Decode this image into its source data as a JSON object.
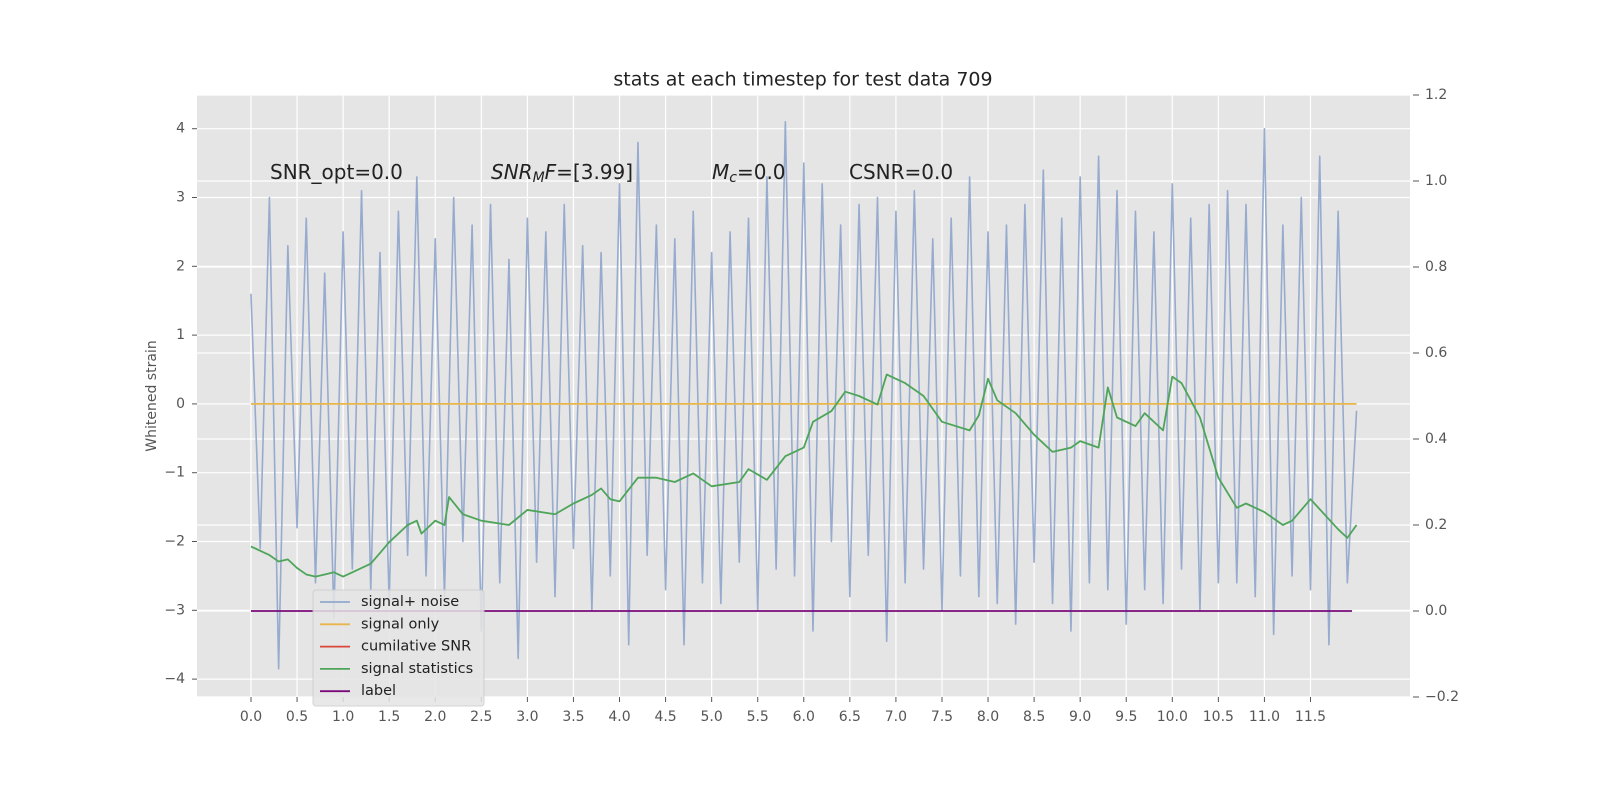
{
  "chart_data": {
    "type": "line",
    "title": "stats at each timestep for test data 709",
    "y_label": "Whitened strain",
    "annotations": [
      [
        "SNR_opt=0.0"
      ],
      [
        "SNR",
        "M",
        "F",
        "=[3.99]"
      ],
      [
        "M",
        "c",
        "=0.0"
      ],
      [
        "CSNR=0.0"
      ]
    ],
    "xlim": [
      -0.586,
      12.58
    ],
    "ylim": [
      -4.26,
      4.49
    ],
    "y2lim": [
      -0.2,
      1.2
    ],
    "xticks": [
      {
        "value": 0,
        "label": "0.0"
      },
      {
        "value": 0.5,
        "label": "0.5"
      },
      {
        "value": 1,
        "label": "1.0"
      },
      {
        "value": 1.5,
        "label": "1.5"
      },
      {
        "value": 2,
        "label": "2.0"
      },
      {
        "value": 2.5,
        "label": "2.5"
      },
      {
        "value": 3,
        "label": "3.0"
      },
      {
        "value": 3.5,
        "label": "3.5"
      },
      {
        "value": 4,
        "label": "4.0"
      },
      {
        "value": 4.5,
        "label": "4.5"
      },
      {
        "value": 5,
        "label": "5.0"
      },
      {
        "value": 5.5,
        "label": "5.5"
      },
      {
        "value": 6,
        "label": "6.0"
      },
      {
        "value": 6.5,
        "label": "6.5"
      },
      {
        "value": 7,
        "label": "7.0"
      },
      {
        "value": 7.5,
        "label": "7.5"
      },
      {
        "value": 8,
        "label": "8.0"
      },
      {
        "value": 8.5,
        "label": "8.5"
      },
      {
        "value": 9,
        "label": "9.0"
      },
      {
        "value": 9.5,
        "label": "9.5"
      },
      {
        "value": 10,
        "label": "10.0"
      },
      {
        "value": 10.5,
        "label": "10.5"
      },
      {
        "value": 11,
        "label": "11.0"
      },
      {
        "value": 11.5,
        "label": "11.5"
      }
    ],
    "yticks": [
      {
        "value": -4,
        "label": "−4"
      },
      {
        "value": -3,
        "label": "−3"
      },
      {
        "value": -2,
        "label": "−2"
      },
      {
        "value": -1,
        "label": "−1"
      },
      0,
      1,
      2,
      3,
      4
    ],
    "y2ticks": [
      {
        "value": -0.2,
        "label": "−0.2"
      },
      {
        "value": 0,
        "label": "0.0"
      },
      0.2,
      0.4,
      0.6,
      0.8,
      {
        "value": 1,
        "label": "1.0"
      },
      1.2
    ],
    "grid": true,
    "legend": "lower left",
    "series": [
      {
        "name": "signal+ noise",
        "color": "#92a8cc",
        "axis": "y",
        "x": [
          0,
          0.1,
          0.2,
          0.3,
          0.4,
          0.5,
          0.6,
          0.7,
          0.8,
          0.9,
          1,
          1.1,
          1.2,
          1.3,
          1.4,
          1.5,
          1.6,
          1.7,
          1.8,
          1.9,
          2,
          2.1,
          2.2,
          2.3,
          2.4,
          2.5,
          2.6,
          2.7,
          2.8,
          2.9,
          3,
          3.1,
          3.2,
          3.3,
          3.4,
          3.5,
          3.6,
          3.7,
          3.8,
          3.9,
          4,
          4.1,
          4.2,
          4.3,
          4.4,
          4.5,
          4.6,
          4.7,
          4.8,
          4.9,
          5,
          5.1,
          5.2,
          5.3,
          5.4,
          5.5,
          5.6,
          5.7,
          5.8,
          5.9,
          6,
          6.1,
          6.2,
          6.3,
          6.4,
          6.5,
          6.6,
          6.7,
          6.8,
          6.9,
          7,
          7.1,
          7.2,
          7.3,
          7.4,
          7.5,
          7.6,
          7.7,
          7.8,
          7.9,
          8,
          8.1,
          8.2,
          8.3,
          8.4,
          8.5,
          8.6,
          8.7,
          8.8,
          8.9,
          9,
          9.1,
          9.2,
          9.3,
          9.4,
          9.5,
          9.6,
          9.7,
          9.8,
          9.9,
          10,
          10.1,
          10.2,
          10.3,
          10.4,
          10.5,
          10.6,
          10.7,
          10.8,
          10.9,
          11,
          11.1,
          11.2,
          11.3,
          11.4,
          11.5,
          11.6,
          11.7,
          11.8,
          11.9,
          12
        ],
        "values": [
          1.6,
          -2.1,
          3.0,
          -3.85,
          2.3,
          -1.8,
          2.7,
          -2.6,
          1.9,
          -3.1,
          2.5,
          -2.4,
          3.1,
          -2.7,
          2.2,
          -2.9,
          2.8,
          -2.2,
          3.3,
          -2.5,
          2.4,
          -2.8,
          3.0,
          -2.0,
          2.6,
          -3.3,
          2.9,
          -2.6,
          2.1,
          -3.7,
          2.7,
          -2.3,
          2.5,
          -2.8,
          2.9,
          -2.1,
          2.3,
          -3.0,
          2.2,
          -2.5,
          3.2,
          -3.5,
          3.8,
          -2.2,
          2.6,
          -2.7,
          2.4,
          -3.5,
          2.8,
          -2.6,
          2.2,
          -2.9,
          2.5,
          -2.3,
          2.7,
          -3.0,
          3.3,
          -2.4,
          4.1,
          -2.5,
          3.5,
          -3.3,
          3.2,
          -2.0,
          2.6,
          -2.8,
          2.9,
          -2.2,
          3.0,
          -3.45,
          2.8,
          -2.6,
          3.1,
          -2.4,
          2.4,
          -3.0,
          2.7,
          -2.5,
          3.3,
          -2.8,
          2.5,
          -2.9,
          2.6,
          -3.2,
          2.9,
          -2.3,
          3.4,
          -2.9,
          2.7,
          -3.3,
          3.3,
          -2.6,
          3.6,
          -2.7,
          3.1,
          -3.2,
          2.8,
          -2.7,
          2.5,
          -2.9,
          3.2,
          -2.4,
          2.7,
          -3.0,
          2.9,
          -2.6,
          3.1,
          -2.6,
          2.9,
          -2.8,
          4.0,
          -3.35,
          2.6,
          -2.5,
          3.0,
          -2.7,
          3.6,
          -3.5,
          2.8,
          -2.6,
          -0.1
        ]
      },
      {
        "name": "signal only",
        "color": "#e8b64a",
        "axis": "y",
        "x": [
          0,
          12
        ],
        "values": [
          0,
          0
        ]
      },
      {
        "name": "cumilative SNR",
        "color": "#d9473a"
      },
      {
        "name": "signal statistics",
        "color": "#4ea55a",
        "axis": "y2",
        "x": [
          0,
          0.2,
          0.3,
          0.4,
          0.5,
          0.6,
          0.7,
          0.8,
          0.9,
          1.0,
          1.1,
          1.3,
          1.5,
          1.7,
          1.8,
          1.85,
          2.0,
          2.1,
          2.15,
          2.3,
          2.5,
          2.8,
          3.0,
          3.3,
          3.5,
          3.7,
          3.8,
          3.9,
          4.0,
          4.2,
          4.4,
          4.6,
          4.8,
          5.0,
          5.3,
          5.4,
          5.6,
          5.8,
          6.0,
          6.1,
          6.3,
          6.45,
          6.6,
          6.8,
          6.9,
          7.1,
          7.3,
          7.5,
          7.8,
          7.9,
          8.0,
          8.1,
          8.3,
          8.5,
          8.7,
          8.9,
          9.0,
          9.2,
          9.3,
          9.4,
          9.6,
          9.7,
          9.9,
          10.0,
          10.1,
          10.3,
          10.5,
          10.7,
          10.8,
          11.0,
          11.2,
          11.3,
          11.5,
          11.8,
          11.9,
          12.0
        ],
        "values": [
          0.15,
          0.13,
          0.115,
          0.12,
          0.1,
          0.085,
          0.08,
          0.085,
          0.09,
          0.08,
          0.09,
          0.11,
          0.16,
          0.2,
          0.21,
          0.18,
          0.21,
          0.2,
          0.265,
          0.225,
          0.21,
          0.2,
          0.235,
          0.225,
          0.25,
          0.27,
          0.285,
          0.26,
          0.255,
          0.31,
          0.31,
          0.3,
          0.32,
          0.29,
          0.3,
          0.33,
          0.305,
          0.36,
          0.38,
          0.44,
          0.465,
          0.51,
          0.5,
          0.48,
          0.55,
          0.53,
          0.5,
          0.44,
          0.42,
          0.455,
          0.54,
          0.49,
          0.46,
          0.41,
          0.37,
          0.38,
          0.395,
          0.38,
          0.52,
          0.45,
          0.43,
          0.46,
          0.42,
          0.545,
          0.53,
          0.45,
          0.31,
          0.24,
          0.25,
          0.23,
          0.2,
          0.21,
          0.26,
          0.19,
          0.17,
          0.2
        ]
      },
      {
        "name": "label",
        "color": "#7a0a7a",
        "axis": "y2",
        "x": [
          0,
          11.95
        ],
        "values": [
          0,
          0
        ]
      }
    ]
  }
}
